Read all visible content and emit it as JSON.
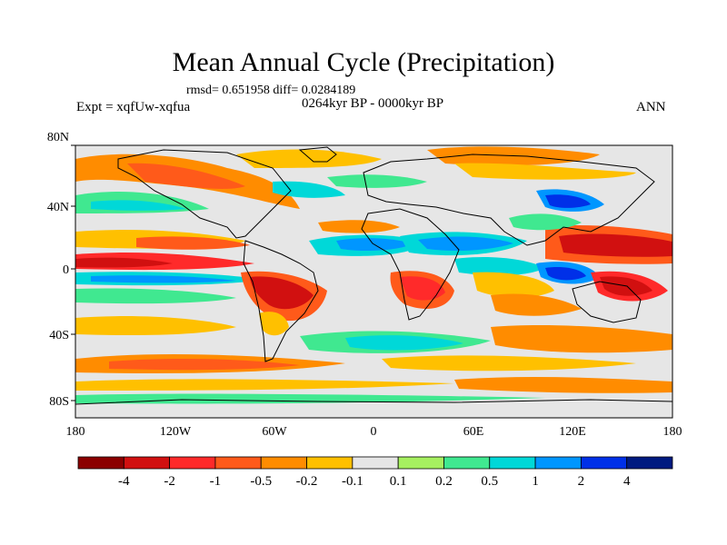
{
  "title": "Mean Annual Cycle (Precipitation)",
  "stats": "rmsd= 0.651958 diff= 0.0284189",
  "period": "0264kyr BP - 0000kyr BP",
  "experiment": "Expt = xqfUw-xqfua",
  "season": "ANN",
  "lat_ticks": [
    "80N",
    "40N",
    "0",
    "40S",
    "80S"
  ],
  "lon_ticks": [
    "180",
    "120W",
    "60W",
    "0",
    "60E",
    "120E",
    "180"
  ],
  "colorbar": {
    "colors": [
      "#8b0000",
      "#d11010",
      "#ff2a2a",
      "#ff5a1a",
      "#ff8c00",
      "#ffc000",
      "#e6e6e6",
      "#a6f060",
      "#40e890",
      "#00d8d8",
      "#0096ff",
      "#0030e8",
      "#001a80"
    ],
    "labels": [
      "-4",
      "-2",
      "-1",
      "-0.5",
      "-0.2",
      "-0.1",
      "0.1",
      "0.2",
      "0.5",
      "1",
      "2",
      "4"
    ]
  }
}
